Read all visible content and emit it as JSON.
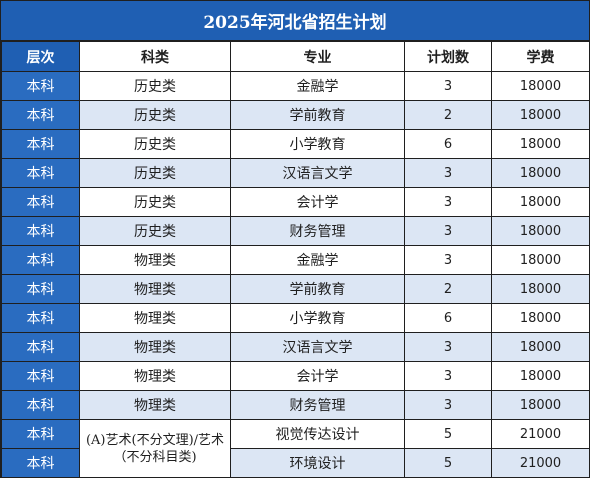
{
  "title": "2025年河北省招生计划",
  "headers": [
    "层次",
    "科类",
    "专业",
    "计划数",
    "学费"
  ],
  "rows": [
    {
      "level": "本科",
      "category": "历史类",
      "major": "金融学",
      "plan": "3",
      "fee": "18000"
    },
    {
      "level": "本科",
      "category": "历史类",
      "major": "学前教育",
      "plan": "2",
      "fee": "18000"
    },
    {
      "level": "本科",
      "category": "历史类",
      "major": "小学教育",
      "plan": "6",
      "fee": "18000"
    },
    {
      "level": "本科",
      "category": "历史类",
      "major": "汉语言文学",
      "plan": "3",
      "fee": "18000"
    },
    {
      "level": "本科",
      "category": "历史类",
      "major": "会计学",
      "plan": "3",
      "fee": "18000"
    },
    {
      "level": "本科",
      "category": "历史类",
      "major": "财务管理",
      "plan": "3",
      "fee": "18000"
    },
    {
      "level": "本科",
      "category": "物理类",
      "major": "金融学",
      "plan": "3",
      "fee": "18000"
    },
    {
      "level": "本科",
      "category": "物理类",
      "major": "学前教育",
      "plan": "2",
      "fee": "18000"
    },
    {
      "level": "本科",
      "category": "物理类",
      "major": "小学教育",
      "plan": "6",
      "fee": "18000"
    },
    {
      "level": "本科",
      "category": "物理类",
      "major": "汉语言文学",
      "plan": "3",
      "fee": "18000"
    },
    {
      "level": "本科",
      "category": "物理类",
      "major": "会计学",
      "plan": "3",
      "fee": "18000"
    },
    {
      "level": "本科",
      "category": "物理类",
      "major": "财务管理",
      "plan": "3",
      "fee": "18000"
    },
    {
      "level": "本科",
      "category": "(A)艺术(不分文理)/艺术（不分科目类)",
      "major": "视觉传达设计",
      "plan": "5",
      "fee": "21000"
    },
    {
      "level": "本科",
      "category": "",
      "major": "环境设计",
      "plan": "5",
      "fee": "21000"
    }
  ],
  "colors": {
    "header_blue": "#1f5fb3",
    "level_blue": "#2a6cc0",
    "alt_row": "#dce6f4"
  }
}
